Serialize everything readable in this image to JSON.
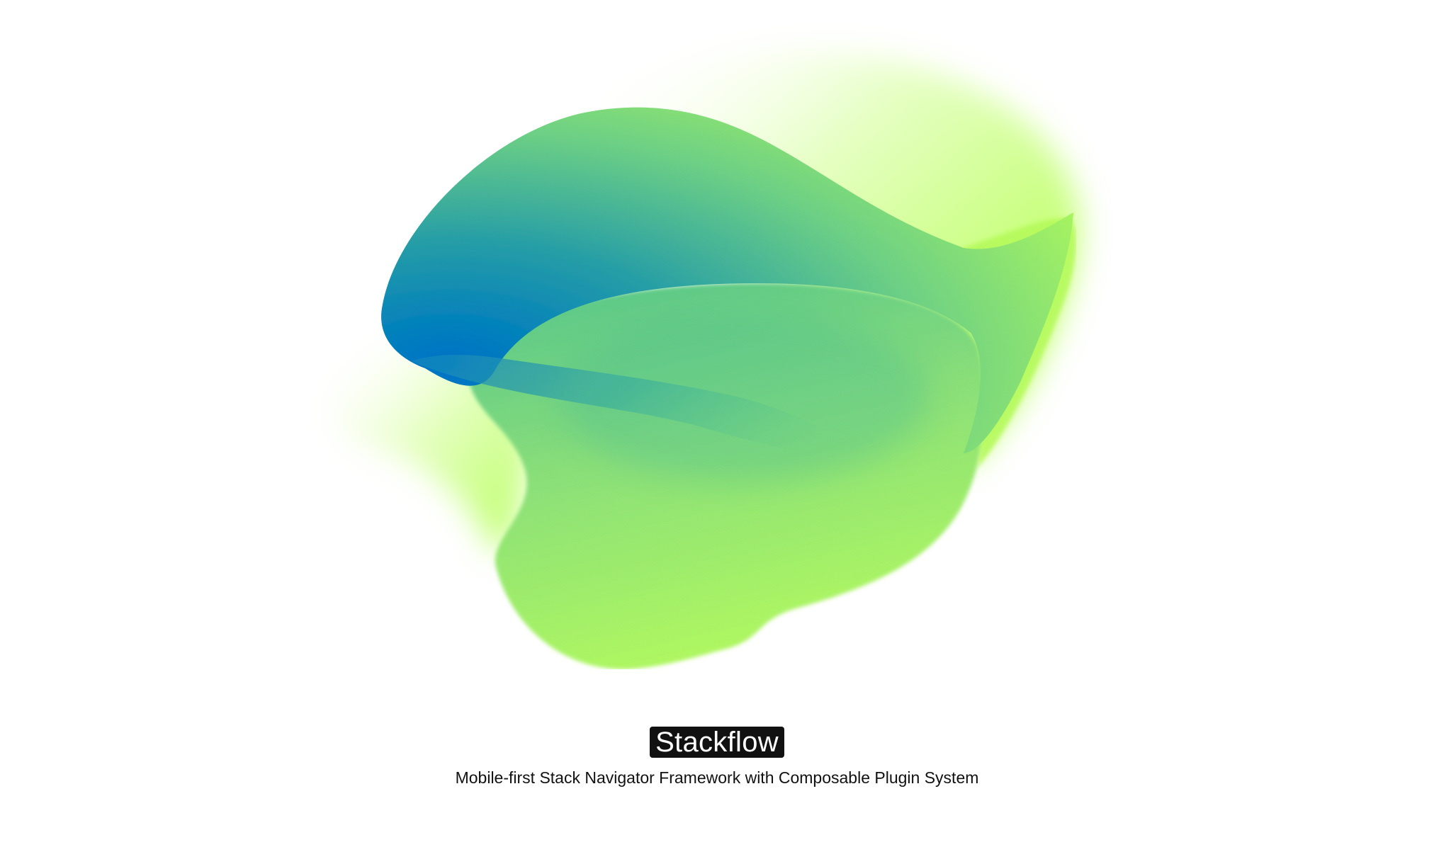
{
  "hero": {
    "title": "Stackflow",
    "subtitle": "Mobile-first Stack Navigator Framework with Composable Plugin System"
  },
  "colors": {
    "background": "#ffffff",
    "blob_blue": "#0077cc",
    "blob_teal": "#3fb9a0",
    "blob_green": "#8ee07a",
    "blob_lime": "#b9ff5c",
    "badge_bg": "#111111",
    "badge_text": "#ffffff",
    "subtitle_text": "#111111"
  },
  "art": {
    "icon": "gradient-blob-logo"
  }
}
